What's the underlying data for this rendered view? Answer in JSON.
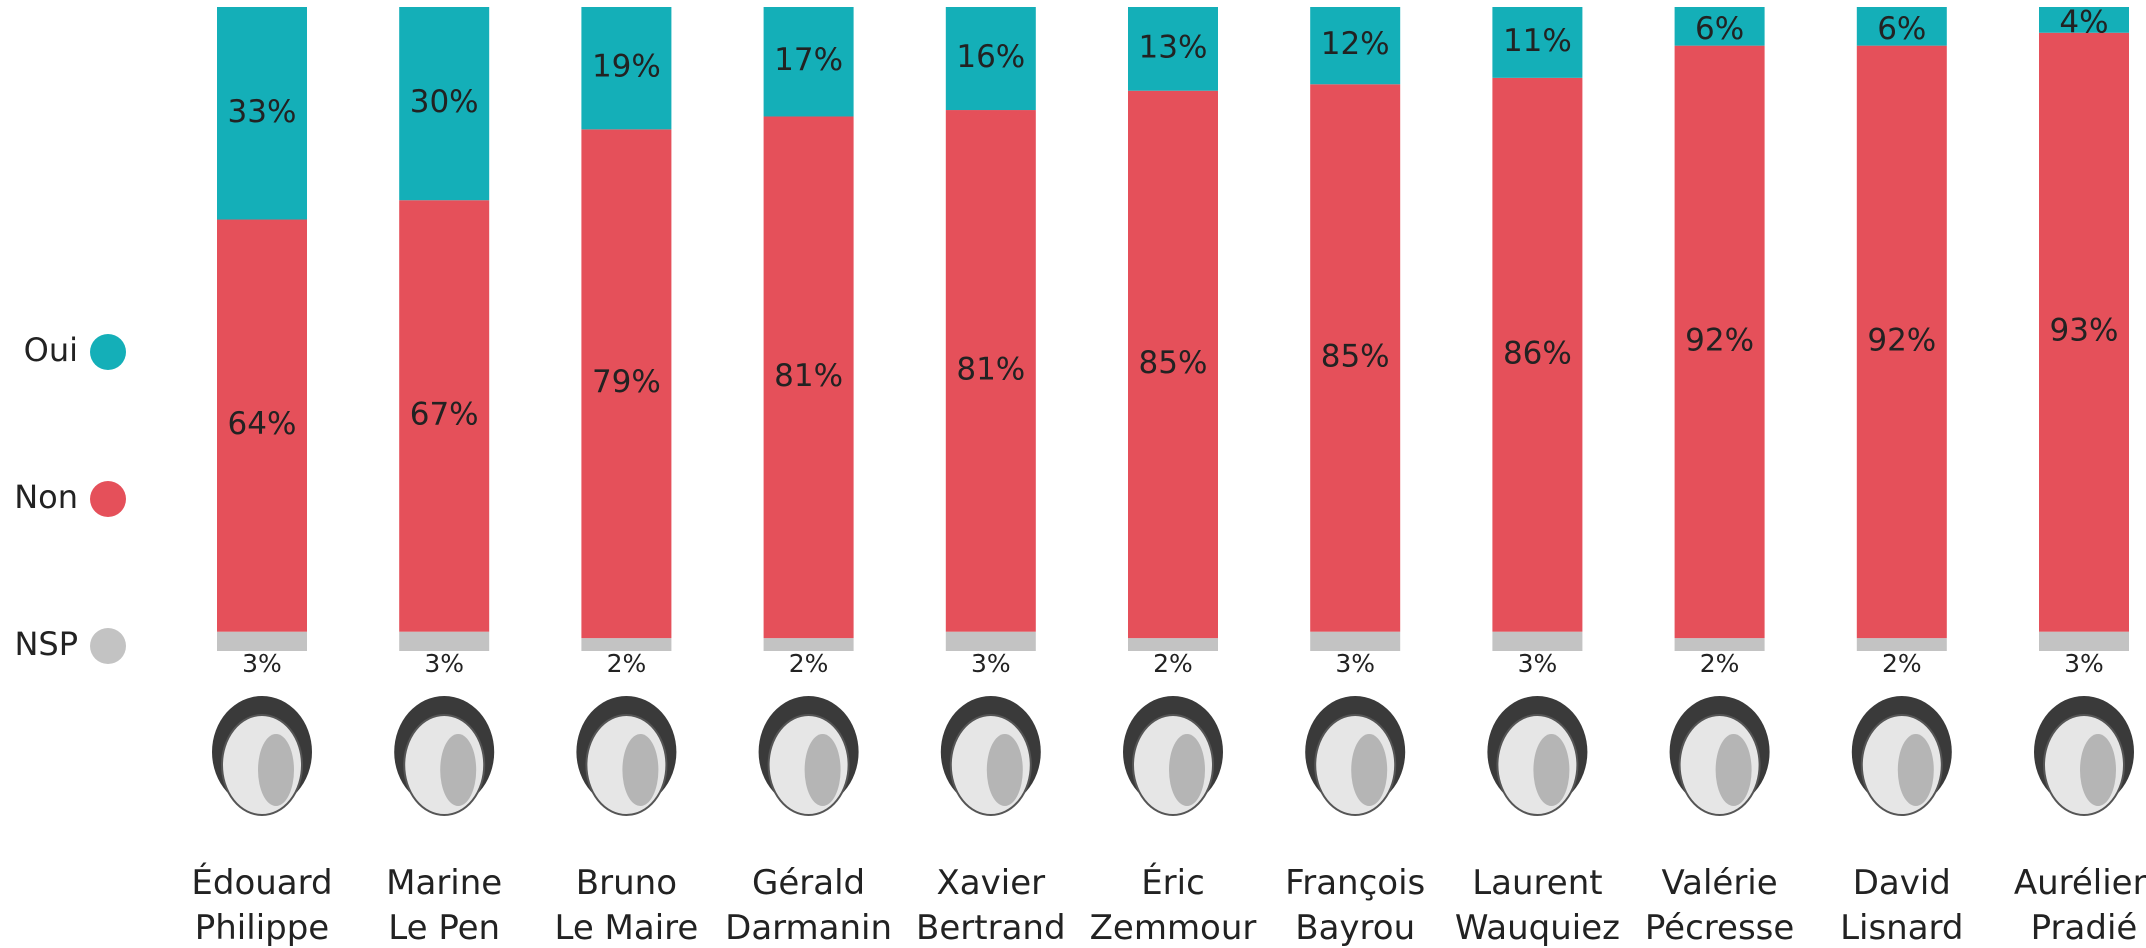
{
  "chart_data": {
    "type": "stacked-bar",
    "categories": [
      "Édouard Philippe",
      "Marine Le Pen",
      "Bruno Le Maire",
      "Gérald Darmanin",
      "Xavier Bertrand",
      "Éric Zemmour",
      "François Bayrou",
      "Laurent Wauquiez",
      "Valérie Pécresse",
      "David Lisnard",
      "Aurélien Pradié"
    ],
    "ylim": [
      0,
      100
    ],
    "series": [
      {
        "name": "NSP",
        "color": "#c3c3c3",
        "label_color": "#222222",
        "values": [
          3,
          3,
          2,
          2,
          3,
          2,
          3,
          3,
          2,
          2,
          3
        ],
        "value_labels": [
          "3%",
          "3%",
          "2%",
          "2%",
          "3%",
          "2%",
          "3%",
          "3%",
          "2%",
          "2%",
          "3%"
        ]
      },
      {
        "name": "Non",
        "color": "#e5505a",
        "label_color": "#ffffff",
        "values": [
          64,
          67,
          79,
          81,
          81,
          85,
          85,
          86,
          92,
          92,
          93
        ],
        "value_labels": [
          "64%",
          "67%",
          "79%",
          "81%",
          "81%",
          "85%",
          "85%",
          "86%",
          "92%",
          "92%",
          "93%"
        ]
      },
      {
        "name": "Oui",
        "color": "#14afb8",
        "label_color": "#ffffff",
        "values": [
          33,
          30,
          19,
          17,
          16,
          13,
          12,
          11,
          6,
          6,
          4
        ],
        "value_labels": [
          "33%",
          "30%",
          "19%",
          "17%",
          "16%",
          "13%",
          "12%",
          "11%",
          "6%",
          "6%",
          "4%"
        ]
      }
    ]
  }
}
